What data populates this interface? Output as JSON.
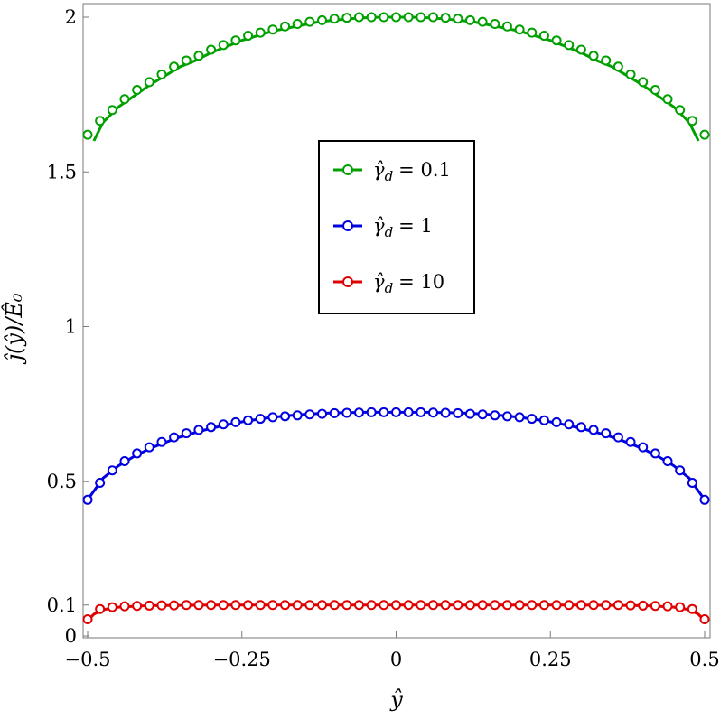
{
  "chart_data": {
    "type": "line",
    "xlabel": "ŷ",
    "ylabel": "ĵ(ŷ)/Ê₀",
    "xlim": [
      -0.5,
      0.5
    ],
    "ylim": [
      0,
      2
    ],
    "x_ticks": [
      {
        "value": -0.5,
        "label": "−0.5"
      },
      {
        "value": -0.25,
        "label": "−0.25"
      },
      {
        "value": 0,
        "label": "0"
      },
      {
        "value": 0.25,
        "label": "0.25"
      },
      {
        "value": 0.5,
        "label": "0.5"
      }
    ],
    "y_ticks": [
      {
        "value": 0,
        "label": "0"
      },
      {
        "value": 0.1,
        "label": "0.1"
      },
      {
        "value": 0.5,
        "label": "0.5"
      },
      {
        "value": 1,
        "label": "1"
      },
      {
        "value": 1.5,
        "label": "1.5"
      },
      {
        "value": 2,
        "label": "2"
      }
    ],
    "legend_position": "upper-center",
    "grid": false,
    "series": [
      {
        "name": "γ̂d = 0.1",
        "legend_symbol": "γ̂",
        "legend_subscript": "d",
        "legend_value": "= 0.1",
        "color": "#00a000",
        "x": [
          -0.49,
          -0.475,
          -0.45,
          -0.425,
          -0.4,
          -0.375,
          -0.35,
          -0.325,
          -0.3,
          -0.275,
          -0.25,
          -0.225,
          -0.2,
          -0.175,
          -0.15,
          -0.125,
          -0.1,
          -0.075,
          -0.05,
          -0.025,
          0,
          0.025,
          0.05,
          0.075,
          0.1,
          0.125,
          0.15,
          0.175,
          0.2,
          0.225,
          0.25,
          0.275,
          0.3,
          0.325,
          0.35,
          0.375,
          0.4,
          0.425,
          0.45,
          0.475,
          0.49
        ],
        "y": [
          1.6,
          1.66,
          1.71,
          1.745,
          1.78,
          1.81,
          1.84,
          1.86,
          1.885,
          1.905,
          1.925,
          1.94,
          1.955,
          1.965,
          1.975,
          1.985,
          1.99,
          1.995,
          1.998,
          2.0,
          2.0,
          2.0,
          1.998,
          1.995,
          1.99,
          1.985,
          1.975,
          1.965,
          1.955,
          1.94,
          1.925,
          1.905,
          1.885,
          1.86,
          1.84,
          1.81,
          1.78,
          1.745,
          1.71,
          1.66,
          1.6
        ],
        "markers_x": [
          -0.5,
          -0.48,
          -0.46,
          -0.44,
          -0.42,
          -0.4,
          -0.38,
          -0.36,
          -0.34,
          -0.32,
          -0.3,
          -0.28,
          -0.26,
          -0.24,
          -0.22,
          -0.2,
          -0.18,
          -0.16,
          -0.14,
          -0.12,
          -0.1,
          -0.08,
          -0.06,
          -0.04,
          -0.02,
          0,
          0.02,
          0.04,
          0.06,
          0.08,
          0.1,
          0.12,
          0.14,
          0.16,
          0.18,
          0.2,
          0.22,
          0.24,
          0.26,
          0.28,
          0.3,
          0.32,
          0.34,
          0.36,
          0.38,
          0.4,
          0.42,
          0.44,
          0.46,
          0.48,
          0.5
        ],
        "markers_y": [
          1.62,
          1.665,
          1.7,
          1.735,
          1.765,
          1.79,
          1.815,
          1.84,
          1.86,
          1.875,
          1.895,
          1.91,
          1.925,
          1.94,
          1.95,
          1.96,
          1.97,
          1.978,
          1.985,
          1.99,
          1.995,
          1.998,
          2.0,
          2.0,
          2.0,
          2.0,
          2.0,
          2.0,
          2.0,
          1.998,
          1.995,
          1.99,
          1.985,
          1.978,
          1.97,
          1.96,
          1.95,
          1.94,
          1.925,
          1.91,
          1.895,
          1.875,
          1.86,
          1.84,
          1.815,
          1.79,
          1.765,
          1.735,
          1.7,
          1.665,
          1.62
        ]
      },
      {
        "name": "γ̂d = 1",
        "legend_symbol": "γ̂",
        "legend_subscript": "d",
        "legend_value": "= 1",
        "color": "#0000e0",
        "x": [
          -0.5,
          -0.475,
          -0.45,
          -0.425,
          -0.4,
          -0.375,
          -0.35,
          -0.325,
          -0.3,
          -0.275,
          -0.25,
          -0.225,
          -0.2,
          -0.175,
          -0.15,
          -0.125,
          -0.1,
          -0.075,
          -0.05,
          -0.025,
          0,
          0.025,
          0.05,
          0.075,
          0.1,
          0.125,
          0.15,
          0.175,
          0.2,
          0.225,
          0.25,
          0.275,
          0.3,
          0.325,
          0.35,
          0.375,
          0.4,
          0.425,
          0.45,
          0.475,
          0.5
        ],
        "y": [
          0.44,
          0.51,
          0.55,
          0.58,
          0.605,
          0.625,
          0.643,
          0.658,
          0.671,
          0.682,
          0.692,
          0.7,
          0.707,
          0.712,
          0.716,
          0.719,
          0.721,
          0.722,
          0.723,
          0.723,
          0.723,
          0.723,
          0.723,
          0.722,
          0.721,
          0.719,
          0.716,
          0.712,
          0.707,
          0.7,
          0.692,
          0.682,
          0.671,
          0.658,
          0.643,
          0.625,
          0.605,
          0.58,
          0.55,
          0.51,
          0.44
        ],
        "markers_x": [
          -0.5,
          -0.48,
          -0.46,
          -0.44,
          -0.42,
          -0.4,
          -0.38,
          -0.36,
          -0.34,
          -0.32,
          -0.3,
          -0.28,
          -0.26,
          -0.24,
          -0.22,
          -0.2,
          -0.18,
          -0.16,
          -0.14,
          -0.12,
          -0.1,
          -0.08,
          -0.06,
          -0.04,
          -0.02,
          0,
          0.02,
          0.04,
          0.06,
          0.08,
          0.1,
          0.12,
          0.14,
          0.16,
          0.18,
          0.2,
          0.22,
          0.24,
          0.26,
          0.28,
          0.3,
          0.32,
          0.34,
          0.36,
          0.38,
          0.4,
          0.42,
          0.44,
          0.46,
          0.48,
          0.5
        ],
        "markers_y": [
          0.44,
          0.495,
          0.535,
          0.565,
          0.59,
          0.61,
          0.627,
          0.642,
          0.655,
          0.666,
          0.675,
          0.684,
          0.691,
          0.697,
          0.702,
          0.707,
          0.71,
          0.713,
          0.716,
          0.718,
          0.72,
          0.721,
          0.722,
          0.723,
          0.723,
          0.723,
          0.723,
          0.723,
          0.722,
          0.721,
          0.72,
          0.718,
          0.716,
          0.713,
          0.71,
          0.707,
          0.702,
          0.697,
          0.691,
          0.684,
          0.675,
          0.666,
          0.655,
          0.642,
          0.627,
          0.61,
          0.59,
          0.565,
          0.535,
          0.495,
          0.44
        ]
      },
      {
        "name": "γ̂d = 10",
        "legend_symbol": "γ̂",
        "legend_subscript": "d",
        "legend_value": "= 10",
        "color": "#e00000",
        "x": [
          -0.5,
          -0.49,
          -0.475,
          -0.45,
          -0.425,
          -0.4,
          -0.35,
          -0.3,
          -0.25,
          -0.2,
          -0.15,
          -0.1,
          -0.05,
          0,
          0.05,
          0.1,
          0.15,
          0.2,
          0.25,
          0.3,
          0.35,
          0.4,
          0.425,
          0.45,
          0.475,
          0.49,
          0.5
        ],
        "y": [
          0.05,
          0.07,
          0.085,
          0.093,
          0.096,
          0.098,
          0.099,
          0.1,
          0.1,
          0.1,
          0.1,
          0.1,
          0.1,
          0.1,
          0.1,
          0.1,
          0.1,
          0.1,
          0.1,
          0.1,
          0.099,
          0.098,
          0.096,
          0.093,
          0.085,
          0.07,
          0.05
        ],
        "markers_x": [
          -0.5,
          -0.48,
          -0.46,
          -0.44,
          -0.42,
          -0.4,
          -0.38,
          -0.36,
          -0.34,
          -0.32,
          -0.3,
          -0.28,
          -0.26,
          -0.24,
          -0.22,
          -0.2,
          -0.18,
          -0.16,
          -0.14,
          -0.12,
          -0.1,
          -0.08,
          -0.06,
          -0.04,
          -0.02,
          0,
          0.02,
          0.04,
          0.06,
          0.08,
          0.1,
          0.12,
          0.14,
          0.16,
          0.18,
          0.2,
          0.22,
          0.24,
          0.26,
          0.28,
          0.3,
          0.32,
          0.34,
          0.36,
          0.38,
          0.4,
          0.42,
          0.44,
          0.46,
          0.48,
          0.5
        ],
        "markers_y": [
          0.054,
          0.087,
          0.093,
          0.096,
          0.097,
          0.098,
          0.099,
          0.099,
          0.1,
          0.1,
          0.1,
          0.1,
          0.1,
          0.1,
          0.1,
          0.1,
          0.1,
          0.1,
          0.1,
          0.1,
          0.1,
          0.1,
          0.1,
          0.1,
          0.1,
          0.1,
          0.1,
          0.1,
          0.1,
          0.1,
          0.1,
          0.1,
          0.1,
          0.1,
          0.1,
          0.1,
          0.1,
          0.1,
          0.1,
          0.1,
          0.1,
          0.1,
          0.1,
          0.1,
          0.099,
          0.098,
          0.097,
          0.096,
          0.093,
          0.087,
          0.054
        ]
      }
    ]
  }
}
